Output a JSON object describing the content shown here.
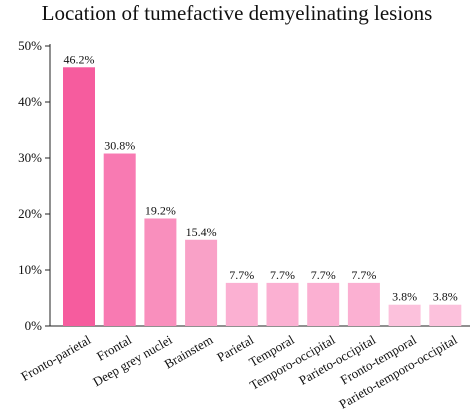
{
  "chart_data": {
    "type": "bar",
    "title": "Location of tumefactive demyelinating lesions",
    "xlabel": "",
    "ylabel": "",
    "ylim": [
      0,
      50
    ],
    "yticks": [
      "0%",
      "10%",
      "20%",
      "30%",
      "40%",
      "50%"
    ],
    "grid": false,
    "categories": [
      "Fronto-parietal",
      "Frontal",
      "Deep grey nuclei",
      "Brainstem",
      "Parietal",
      "Temporal",
      "Temporo-occipital",
      "Parieto-occipital",
      "Fronto-temporal",
      "Parieto-temporo-occipital"
    ],
    "values": [
      46.2,
      30.8,
      19.2,
      15.4,
      7.7,
      7.7,
      7.7,
      7.7,
      3.8,
      3.8
    ],
    "value_labels": [
      "46.2%",
      "30.8%",
      "19.2%",
      "15.4%",
      "7.7%",
      "7.7%",
      "7.7%",
      "7.7%",
      "3.8%",
      "3.8%"
    ],
    "colors": [
      "#f65c9e",
      "#f87ab2",
      "#f98fbd",
      "#f9a1c7",
      "#fbb0d2",
      "#fbb0d2",
      "#fbb0d2",
      "#fbb0d2",
      "#fcc1dc",
      "#fcc1dc"
    ]
  }
}
